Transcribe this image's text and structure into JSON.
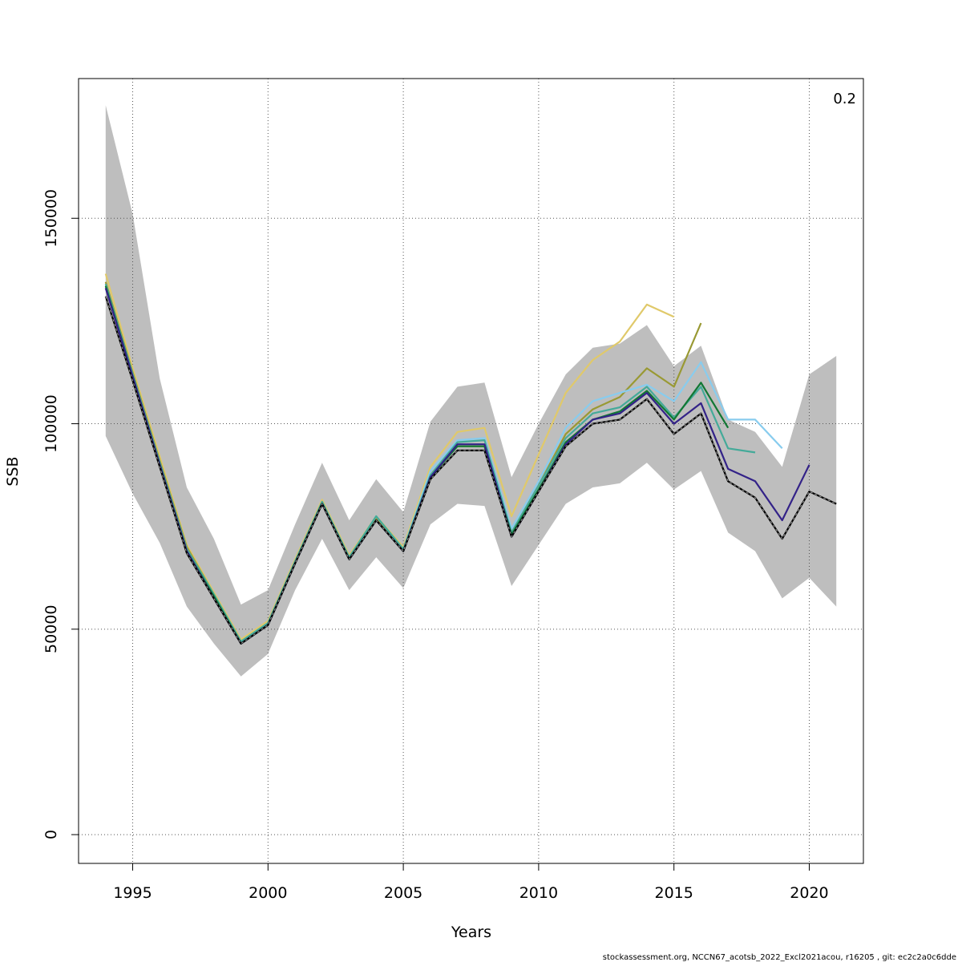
{
  "chart_data": {
    "type": "line",
    "xlabel": "Years",
    "ylabel": "SSB",
    "corner_label": "0.2",
    "footer": "stockassessment.org, NCCN67_acotsb_2022_Excl2021acou, r16205 , git: ec2c2a0c6dde",
    "xlim": [
      1993,
      2022
    ],
    "ylim": [
      -7000,
      184000
    ],
    "xticks": [
      1995,
      2000,
      2005,
      2010,
      2015,
      2020
    ],
    "yticks": [
      0,
      50000,
      100000,
      150000
    ],
    "grid": true,
    "band": {
      "color": "#bebebe",
      "x": [
        1994,
        1995,
        1996,
        1997,
        1998,
        1999,
        2000,
        2001,
        2002,
        2003,
        2004,
        2005,
        2006,
        2007,
        2008,
        2009,
        2010,
        2011,
        2012,
        2013,
        2014,
        2015,
        2016,
        2017,
        2018,
        2019,
        2020,
        2021
      ],
      "upper": [
        177500,
        151000,
        111000,
        84500,
        72000,
        56000,
        59500,
        75500,
        90500,
        76500,
        86500,
        78500,
        100500,
        109000,
        110000,
        87000,
        100000,
        112000,
        118500,
        119500,
        124000,
        114000,
        119000,
        101000,
        98000,
        89500,
        112000,
        116500
      ],
      "lower": [
        97000,
        83000,
        71000,
        55500,
        46500,
        38500,
        44000,
        59500,
        72000,
        59500,
        67500,
        60000,
        75500,
        80500,
        80000,
        60500,
        70500,
        80500,
        84500,
        85500,
        90500,
        84000,
        88500,
        73500,
        69000,
        57500,
        62500,
        55500
      ]
    },
    "series": [
      {
        "color": "#e0c96a",
        "x": [
          1994,
          1995,
          1996,
          1997,
          1998,
          1999,
          2000,
          2001,
          2002,
          2003,
          2004,
          2005,
          2006,
          2007,
          2008,
          2009,
          2010,
          2011,
          2012,
          2013,
          2014,
          2015
        ],
        "values": [
          136500,
          113500,
          92000,
          70500,
          59000,
          47500,
          52000,
          67000,
          81500,
          68000,
          77500,
          70000,
          89500,
          98000,
          99000,
          77500,
          92500,
          107500,
          115500,
          120000,
          129000,
          126000
        ]
      },
      {
        "color": "#999933",
        "x": [
          1994,
          1995,
          1996,
          1997,
          1998,
          1999,
          2000,
          2001,
          2002,
          2003,
          2004,
          2005,
          2006,
          2007,
          2008,
          2009,
          2010,
          2011,
          2012,
          2013,
          2014,
          2015,
          2016
        ],
        "values": [
          134500,
          112500,
          91000,
          70000,
          58500,
          47000,
          51500,
          66500,
          81000,
          67500,
          77000,
          69500,
          87500,
          94500,
          94500,
          73500,
          85000,
          97500,
          103500,
          106500,
          113500,
          109000,
          124500
        ]
      },
      {
        "color": "#88ccee",
        "x": [
          1994,
          1995,
          1996,
          1997,
          1998,
          1999,
          2000,
          2001,
          2002,
          2003,
          2004,
          2005,
          2006,
          2007,
          2008,
          2009,
          2010,
          2011,
          2012,
          2013,
          2014,
          2015,
          2016,
          2017,
          2018,
          2019
        ],
        "values": [
          134000,
          112000,
          90500,
          69500,
          58500,
          47000,
          51500,
          66500,
          81000,
          67500,
          77500,
          69500,
          88500,
          96000,
          96500,
          74500,
          86000,
          99000,
          105500,
          107500,
          109500,
          105500,
          115000,
          101000,
          101000,
          94000
        ]
      },
      {
        "color": "#44aa99",
        "x": [
          1994,
          1995,
          1996,
          1997,
          1998,
          1999,
          2000,
          2001,
          2002,
          2003,
          2004,
          2005,
          2006,
          2007,
          2008,
          2009,
          2010,
          2011,
          2012,
          2013,
          2014,
          2015,
          2016,
          2017,
          2018
        ],
        "values": [
          134000,
          112000,
          90500,
          69500,
          58500,
          47000,
          51500,
          66500,
          81000,
          67500,
          77500,
          69500,
          87500,
          95500,
          96000,
          73500,
          85000,
          96500,
          102500,
          104000,
          109000,
          101500,
          109000,
          94000,
          93000
        ]
      },
      {
        "color": "#117733",
        "x": [
          1994,
          1995,
          1996,
          1997,
          1998,
          1999,
          2000,
          2001,
          2002,
          2003,
          2004,
          2005,
          2006,
          2007,
          2008,
          2009,
          2010,
          2011,
          2012,
          2013,
          2014,
          2015,
          2016,
          2017
        ],
        "values": [
          133500,
          111500,
          90000,
          69000,
          58000,
          46500,
          51000,
          66000,
          80500,
          67000,
          76500,
          69000,
          87000,
          94500,
          94500,
          73000,
          84000,
          95500,
          101000,
          103000,
          108000,
          101000,
          110000,
          99000
        ]
      },
      {
        "color": "#332288",
        "x": [
          1994,
          1995,
          1996,
          1997,
          1998,
          1999,
          2000,
          2001,
          2002,
          2003,
          2004,
          2005,
          2006,
          2007,
          2008,
          2009,
          2010,
          2011,
          2012,
          2013,
          2014,
          2015,
          2016,
          2017,
          2018,
          2019,
          2020
        ],
        "values": [
          133000,
          111500,
          90000,
          69000,
          57500,
          46500,
          51000,
          66000,
          80500,
          67000,
          76500,
          69000,
          87000,
          95000,
          95000,
          72500,
          83500,
          95000,
          101000,
          102500,
          107500,
          100000,
          105000,
          89000,
          86000,
          76500,
          90000
        ]
      },
      {
        "color": "#000000",
        "dashed": true,
        "x": [
          1994,
          1995,
          1996,
          1997,
          1998,
          1999,
          2000,
          2001,
          2002,
          2003,
          2004,
          2005,
          2006,
          2007,
          2008,
          2009,
          2010,
          2011,
          2012,
          2013,
          2014,
          2015,
          2016,
          2017,
          2018,
          2019,
          2020,
          2021
        ],
        "values": [
          131000,
          110500,
          89500,
          68500,
          57500,
          46500,
          51000,
          66000,
          80500,
          67000,
          76500,
          69000,
          86500,
          93500,
          93500,
          72500,
          83500,
          94500,
          100000,
          101000,
          106000,
          97500,
          102500,
          86000,
          82000,
          72000,
          83500,
          80500
        ]
      }
    ]
  }
}
